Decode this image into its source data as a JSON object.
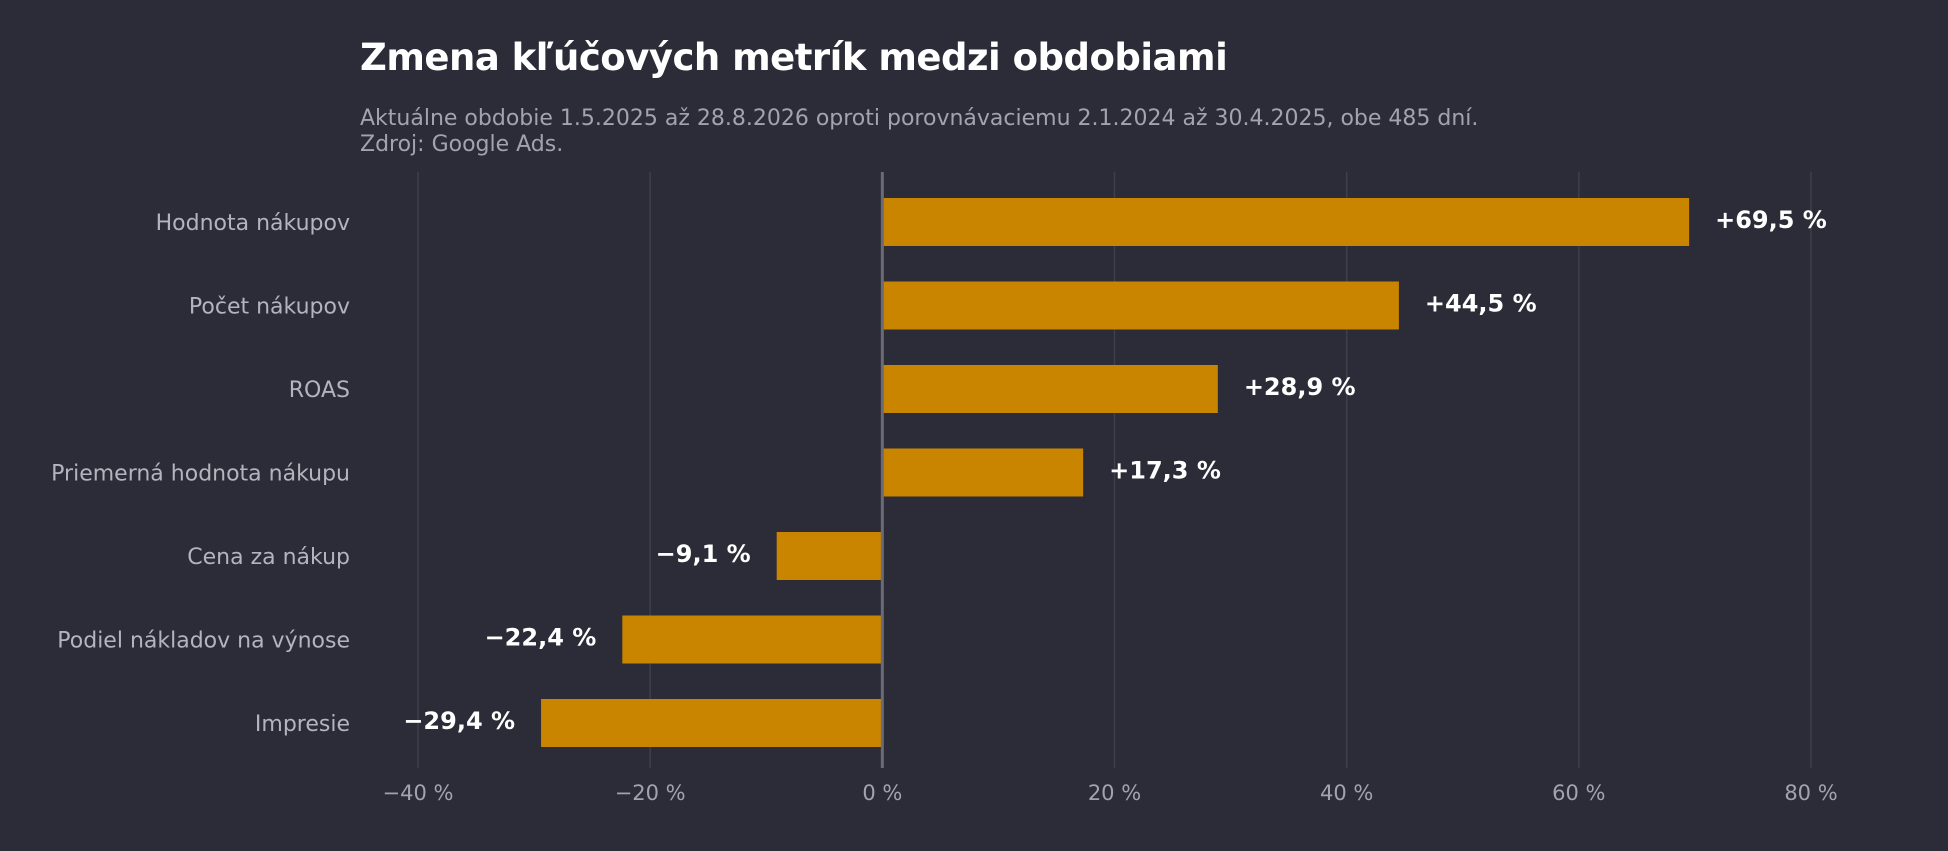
{
  "chart_data": {
    "type": "bar",
    "orientation": "horizontal",
    "title": "Zmena kľúčových metrík medzi obdobiami",
    "subtitle_lines": [
      "Aktuálne obdobie 1.5.2025 až 28.8.2026 oproti porovnávaciemu 2.1.2024 až 30.4.2025, obe 485 dní.",
      "Zdroj: Google Ads."
    ],
    "categories": [
      "Hodnota nákupov",
      "Počet nákupov",
      "ROAS",
      "Priemerná hodnota nákupu",
      "Cena za nákup",
      "Podiel nákladov na výnose",
      "Impresie"
    ],
    "values": [
      69.5,
      44.5,
      28.9,
      17.3,
      -9.1,
      -22.4,
      -29.4
    ],
    "value_labels": [
      "+69,5 %",
      "+44,5 %",
      "+28,9 %",
      "+17,3 %",
      "−9,1 %",
      "−22,4 %",
      "−29,4 %"
    ],
    "xticks": [
      -40,
      -20,
      0,
      20,
      40,
      60,
      80
    ],
    "xtick_labels": [
      "−40 %",
      "−20 %",
      "0 %",
      "20 %",
      "40 %",
      "60 %",
      "80 %"
    ],
    "xlim": [
      -40,
      80
    ],
    "grid": "vertical",
    "bar_color": "#c98400",
    "grid_color": "#3f3f4c",
    "zero_line_color": "#6b6b78"
  }
}
